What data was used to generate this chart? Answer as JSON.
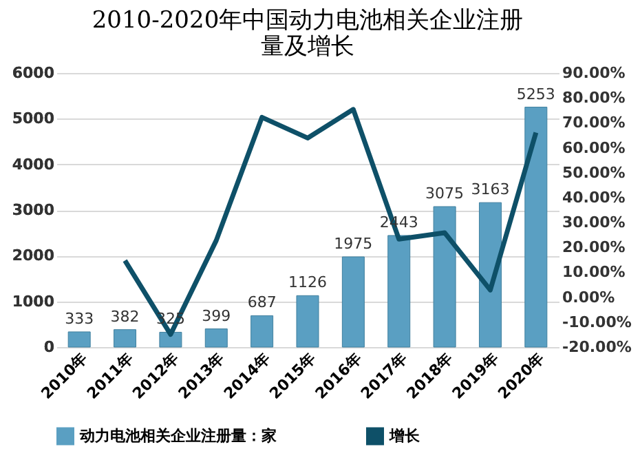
{
  "chart_data": {
    "type": "bar",
    "title": "2010-2020年中国动力电池相关企业注册量及增长",
    "categories": [
      "2010年",
      "2011年",
      "2012年",
      "2013年",
      "2014年",
      "2015年",
      "2016年",
      "2017年",
      "2018年",
      "2019年",
      "2020年"
    ],
    "series": [
      {
        "name": "动力电池相关企业注册量：家",
        "color": "#5a9fc2",
        "values": [
          333,
          382,
          325,
          399,
          687,
          1126,
          1975,
          2443,
          3075,
          3163,
          5253
        ],
        "value_labels": [
          "333",
          "382",
          "325",
          "399",
          "687",
          "1126",
          "1975",
          "2443",
          "3075",
          "3163",
          "5253"
        ]
      },
      {
        "name": "增长",
        "type": "line",
        "axis": "y2",
        "color": "#0e5068",
        "values": [
          null,
          14.7,
          -14.9,
          22.8,
          72.2,
          63.9,
          75.4,
          23.3,
          25.9,
          2.9,
          66.1
        ]
      }
    ],
    "ylim": [
      0,
      6000
    ],
    "yticks": [
      0,
      1000,
      2000,
      3000,
      4000,
      5000,
      6000
    ],
    "y2lim": [
      -20,
      90
    ],
    "y2ticks": [
      {
        "value": -20,
        "label": "-20.00%"
      },
      {
        "value": -10,
        "label": "-10.00%"
      },
      {
        "value": 0,
        "label": "0.00%"
      },
      {
        "value": 10,
        "label": "10.00%"
      },
      {
        "value": 20,
        "label": "20.00%"
      },
      {
        "value": 30,
        "label": "30.00%"
      },
      {
        "value": 40,
        "label": "40.00%"
      },
      {
        "value": 50,
        "label": "50.00%"
      },
      {
        "value": 60,
        "label": "60.00%"
      },
      {
        "value": 70,
        "label": "70.00%"
      },
      {
        "value": 80,
        "label": "80.00%"
      },
      {
        "value": 90,
        "label": "90.00%"
      }
    ],
    "grid": "y",
    "legend": "bottom"
  }
}
